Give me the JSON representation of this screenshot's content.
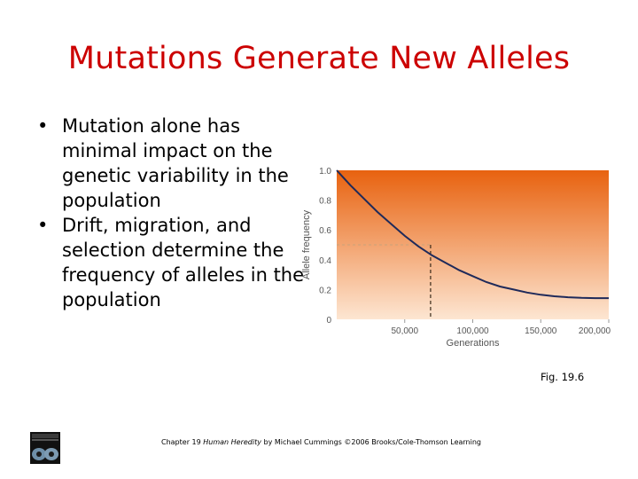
{
  "slide": {
    "title": "Mutations Generate New Alleles",
    "bullets": [
      {
        "marker": "•",
        "text": "Mutation alone has minimal impact on the genetic variability in the population"
      },
      {
        "marker": "•",
        "text": "Drift, migration, and selection determine the frequency of alleles in the population"
      }
    ],
    "caption": "Fig. 19.6",
    "footer": {
      "prefix": "Chapter 19 ",
      "book": "Human Heredity",
      "suffix": " by Michael Cummings ©2006 Brooks/Cole-Thomson Learning"
    }
  },
  "colors": {
    "title": "#cc0000",
    "gradient_top": "#e8620f",
    "gradient_bottom": "#fde6d2",
    "curve": "#1f2a5a"
  },
  "chart_data": {
    "type": "line",
    "xlabel": "Generations",
    "ylabel": "Allele frequency",
    "xlim": [
      0,
      200000
    ],
    "ylim": [
      0,
      1.0
    ],
    "x_ticks": [
      "50,000",
      "100,000",
      "150,000",
      "200,000"
    ],
    "x_tick_values": [
      50000,
      100000,
      150000,
      200000
    ],
    "y_ticks": [
      "0",
      "0.2",
      "0.4",
      "0.6",
      "0.8",
      "1.0"
    ],
    "y_tick_values": [
      0,
      0.2,
      0.4,
      0.6,
      0.8,
      1.0
    ],
    "series": [
      {
        "x": [
          0,
          10000,
          20000,
          30000,
          40000,
          50000,
          60000,
          70000,
          80000,
          90000,
          100000,
          110000,
          120000,
          130000,
          140000,
          150000,
          160000,
          170000,
          180000,
          190000,
          200000
        ],
        "y": [
          1.0,
          0.9,
          0.81,
          0.72,
          0.64,
          0.56,
          0.49,
          0.43,
          0.38,
          0.33,
          0.29,
          0.25,
          0.22,
          0.2,
          0.18,
          0.165,
          0.155,
          0.148,
          0.144,
          0.142,
          0.142
        ]
      }
    ],
    "reference_line": {
      "x": 69000,
      "y": 0.5
    }
  }
}
